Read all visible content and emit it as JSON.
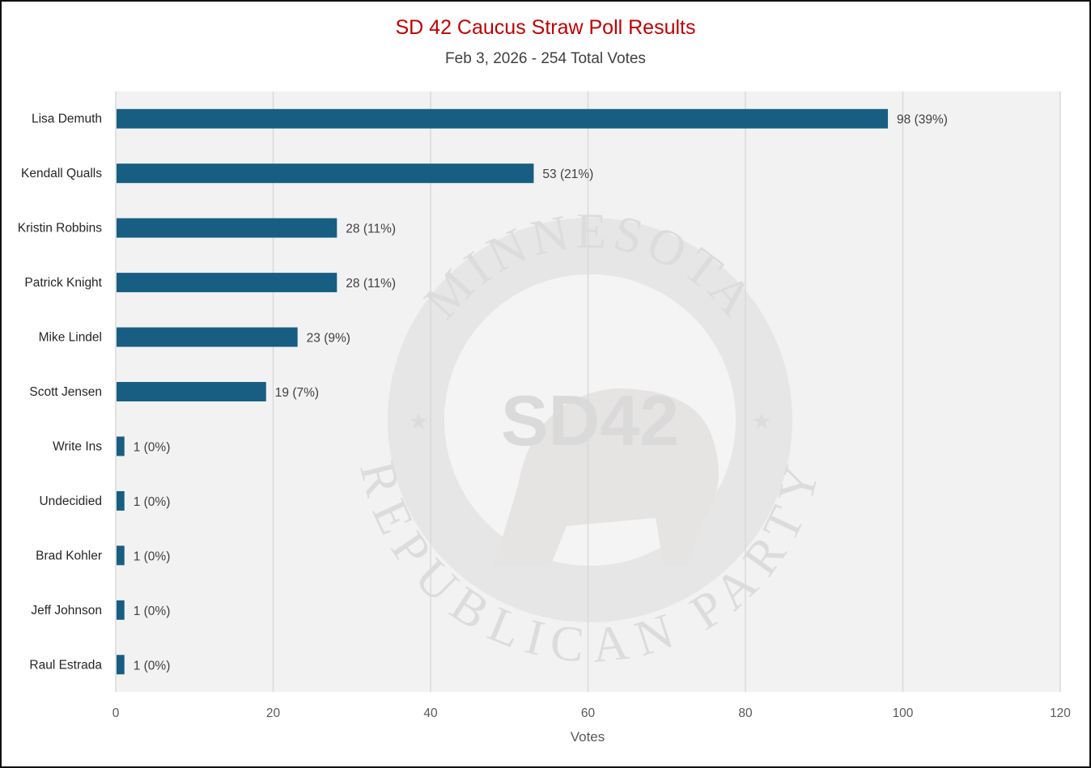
{
  "chart_data": {
    "type": "bar",
    "orientation": "horizontal",
    "title": "SD 42 Caucus Straw Poll Results",
    "subtitle": "Feb 3, 2026 - 254 Total Votes",
    "xlabel": "Votes",
    "ylabel": "",
    "xlim": [
      0,
      120
    ],
    "xticks": [
      "0",
      "20",
      "40",
      "60",
      "80",
      "100",
      "120"
    ],
    "grid": true,
    "categories": [
      "Lisa Demuth",
      "Kendall Qualls",
      "Kristin Robbins",
      "Patrick Knight",
      "Mike Lindel",
      "Scott Jensen",
      "Write Ins",
      "Undecidied",
      "Brad Kohler",
      "Jeff Johnson",
      "Raul Estrada"
    ],
    "values": [
      98,
      53,
      28,
      28,
      23,
      19,
      1,
      1,
      1,
      1,
      1
    ],
    "data_labels": [
      "98 (39%)",
      "53 (21%)",
      "28 (11%)",
      "28 (11%)",
      "23 (9%)",
      "19 (7%)",
      "1 (0%)",
      "1 (0%)",
      "1 (0%)",
      "1 (0%)",
      "1 (0%)"
    ],
    "colors": {
      "bar": "#175e82",
      "title": "#c00000",
      "plot_bg": "#f2f2f2",
      "grid": "#d9d9d9"
    }
  },
  "watermark": {
    "top": "MINNESOTA",
    "bottom": "REPUBLICAN PARTY",
    "center": "SD42"
  }
}
